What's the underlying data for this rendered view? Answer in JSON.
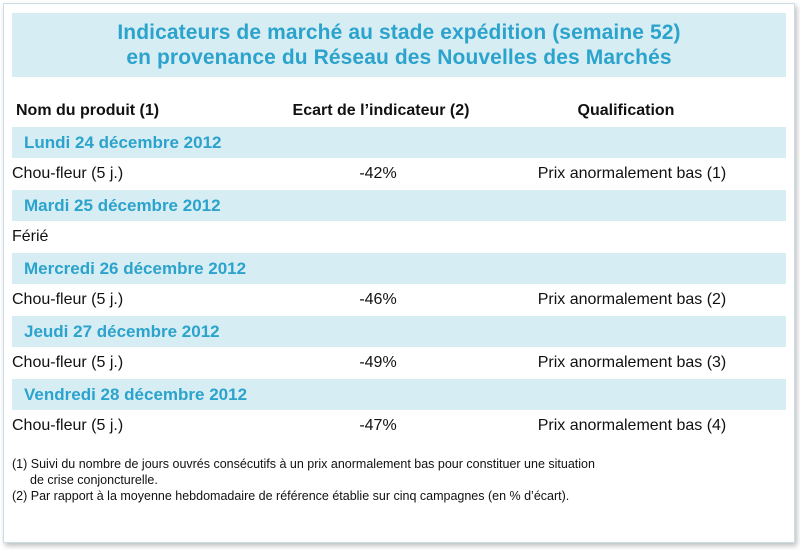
{
  "title": {
    "line1": "Indicateurs de marché au stade expédition (semaine 52)",
    "line2": "en provenance du Réseau des Nouvelles des Marchés"
  },
  "columns": {
    "product": "Nom du produit (1)",
    "indicator": "Ecart de l’indicateur (2)",
    "qualification": "Qualification"
  },
  "days": [
    {
      "label": "Lundi 24 décembre 2012",
      "product": "Chou-fleur (5 j.)",
      "indicator": "-42%",
      "qualification": "Prix anormalement bas (1)"
    },
    {
      "label": "Mardi 25 décembre 2012",
      "product": "Férié",
      "indicator": "",
      "qualification": ""
    },
    {
      "label": "Mercredi 26 décembre 2012",
      "product": "Chou-fleur (5 j.)",
      "indicator": "-46%",
      "qualification": "Prix anormalement bas (2)"
    },
    {
      "label": "Jeudi 27 décembre 2012",
      "product": "Chou-fleur (5 j.)",
      "indicator": "-49%",
      "qualification": "Prix anormalement bas (3)"
    },
    {
      "label": "Vendredi 28 décembre 2012",
      "product": "Chou-fleur (5 j.)",
      "indicator": "-47%",
      "qualification": "Prix anormalement bas (4)"
    }
  ],
  "footnotes": {
    "note1_line1": "(1) Suivi du nombre de jours ouvrés consécutifs à un prix anormalement bas pour constituer une situation",
    "note1_line2": "de crise conjoncturelle.",
    "note2": "(2) Par rapport à la moyenne hebdomadaire de référence établie sur cinq campagnes (en % d’écart)."
  },
  "colors": {
    "accent": "#2ba3cc",
    "band": "#d7edf4"
  }
}
